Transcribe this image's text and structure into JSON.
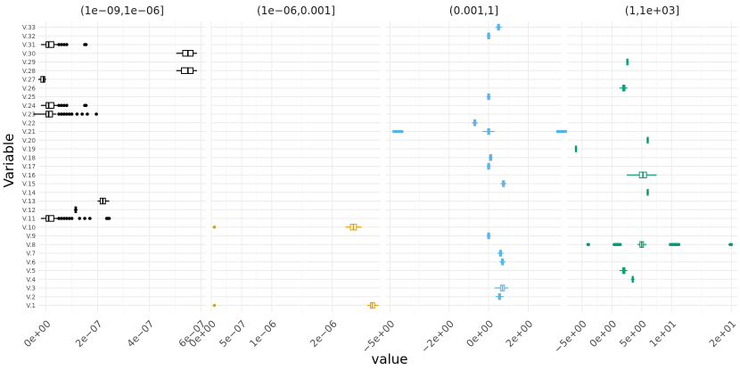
{
  "chart_data": {
    "type": "boxplot",
    "xlabel": "value",
    "ylabel": "Variable",
    "variables": [
      "V.1",
      "V.2",
      "V.3",
      "V.4",
      "V.5",
      "V.6",
      "V.7",
      "V.8",
      "V.9",
      "V.10",
      "V.11",
      "V.12",
      "V.13",
      "V.14",
      "V.15",
      "V.16",
      "V.17",
      "V.18",
      "V.19",
      "V.20",
      "V.21",
      "V.22",
      "V.23",
      "V.24",
      "V.25",
      "V.26",
      "V.27",
      "V.28",
      "V.29",
      "V.30",
      "V.31",
      "V.32",
      "V.33"
    ],
    "panels": [
      {
        "title": "(1e−09,1e−06]",
        "color": "#000000",
        "xlim": [
          -3e-08,
          6.2e-07
        ],
        "ticks": [
          {
            "value": 0,
            "label": "0e+00"
          },
          {
            "value": 2e-07,
            "label": "2e−07"
          },
          {
            "value": 4e-07,
            "label": "4e−07"
          },
          {
            "value": 6e-07,
            "label": "6e−07"
          }
        ],
        "boxes": [
          {
            "variable": "V.11",
            "q1": 0.0,
            "median": 1e-08,
            "q3": 3e-08,
            "whisker_low": -2e-08,
            "whisker_high": 4.5e-08,
            "outliers": [
              5e-08,
              6e-08,
              7e-08,
              8e-08,
              9e-08,
              1e-07,
              1.3e-07,
              1.5e-07,
              1.7e-07,
              2.35e-07,
              2.4e-07,
              2.45e-07
            ]
          },
          {
            "variable": "V.12",
            "q1": 1.12e-07,
            "median": 1.15e-07,
            "q3": 1.18e-07,
            "whisker_low": 1.08e-07,
            "whisker_high": 1.22e-07,
            "outliers": []
          },
          {
            "variable": "V.13",
            "q1": 2.1e-07,
            "median": 2.2e-07,
            "q3": 2.3e-07,
            "whisker_low": 2e-07,
            "whisker_high": 2.45e-07,
            "outliers": []
          },
          {
            "variable": "V.23",
            "q1": 0.0,
            "median": 1e-08,
            "q3": 2.5e-08,
            "whisker_low": -5e-08,
            "whisker_high": 4e-08,
            "outliers": [
              5e-08,
              6e-08,
              7e-08,
              8e-08,
              9e-08,
              1e-07,
              1.2e-07,
              1.4e-07,
              1.6e-07,
              1.95e-07
            ]
          },
          {
            "variable": "V.24",
            "q1": 0.0,
            "median": 1e-08,
            "q3": 3e-08,
            "whisker_low": -2e-08,
            "whisker_high": 4.5e-08,
            "outliers": [
              5e-08,
              6e-08,
              7e-08,
              8e-08,
              1.5e-07,
              1.55e-07
            ]
          },
          {
            "variable": "V.27",
            "q1": -2e-08,
            "median": -1e-08,
            "q3": -5e-09,
            "whisker_low": -3e-08,
            "whisker_high": 0.0,
            "outliers": []
          },
          {
            "variable": "V.28",
            "q1": 5.25e-07,
            "median": 5.5e-07,
            "q3": 5.7e-07,
            "whisker_low": 5.05e-07,
            "whisker_high": 5.85e-07,
            "outliers": []
          },
          {
            "variable": "V.30",
            "q1": 5.3e-07,
            "median": 5.5e-07,
            "q3": 5.7e-07,
            "whisker_low": 5.05e-07,
            "whisker_high": 5.85e-07,
            "outliers": []
          },
          {
            "variable": "V.31",
            "q1": 0.0,
            "median": 1e-08,
            "q3": 3e-08,
            "whisker_low": -2e-08,
            "whisker_high": 4.5e-08,
            "outliers": [
              5e-08,
              6e-08,
              7e-08,
              8e-08,
              1.5e-07,
              1.55e-07
            ]
          }
        ]
      },
      {
        "title": "(1e−06,0.001]",
        "color": "#E69F00",
        "xlim": [
          0,
          2.8e-06
        ],
        "ticks": [
          {
            "value": 0,
            "label": "0e+00"
          },
          {
            "value": 5e-07,
            "label": "5e−07"
          },
          {
            "value": 1e-06,
            "label": "1e−06"
          },
          {
            "value": 2e-06,
            "label": "2e−06"
          }
        ],
        "boxes": [
          {
            "variable": "V.1",
            "q1": 2.63e-06,
            "median": 2.66e-06,
            "q3": 2.7e-06,
            "whisker_low": 2.58e-06,
            "whisker_high": 2.76e-06,
            "outliers": [
              5e-08
            ]
          },
          {
            "variable": "V.10",
            "q1": 2.3e-06,
            "median": 2.35e-06,
            "q3": 2.4e-06,
            "whisker_low": 2.22e-06,
            "whisker_high": 2.48e-06,
            "outliers": [
              5e-08
            ]
          }
        ]
      },
      {
        "title": "(0.001,1]",
        "color": "#56B4E9",
        "xlim": [
          -5.2,
          3.7
        ],
        "ticks": [
          {
            "value": -5,
            "label": "−5e+00"
          },
          {
            "value": -2,
            "label": "−2e+00"
          },
          {
            "value": 0,
            "label": "0e+00"
          },
          {
            "value": 2,
            "label": "2e+00"
          }
        ],
        "boxes": [
          {
            "variable": "V.2",
            "q1": 0.5,
            "median": 0.55,
            "q3": 0.6,
            "whisker_low": 0.35,
            "whisker_high": 0.75,
            "outliers": []
          },
          {
            "variable": "V.3",
            "q1": 0.6,
            "median": 0.7,
            "q3": 0.8,
            "whisker_low": 0.3,
            "whisker_high": 1.0,
            "outliers": []
          },
          {
            "variable": "V.4",
            "q1": 0.0,
            "median": 0.0,
            "q3": 0.0,
            "whisker_low": 0.0,
            "whisker_high": 0.0,
            "outliers": [],
            "hidden": true
          },
          {
            "variable": "V.6",
            "q1": 0.65,
            "median": 0.7,
            "q3": 0.75,
            "whisker_low": 0.55,
            "whisker_high": 0.85,
            "outliers": []
          },
          {
            "variable": "V.7",
            "q1": 0.55,
            "median": 0.6,
            "q3": 0.65,
            "whisker_low": 0.45,
            "whisker_high": 0.75,
            "outliers": []
          },
          {
            "variable": "V.9",
            "q1": -0.05,
            "median": 0.0,
            "q3": 0.05,
            "whisker_low": -0.1,
            "whisker_high": 0.1,
            "outliers": []
          },
          {
            "variable": "V.15",
            "q1": 0.7,
            "median": 0.75,
            "q3": 0.8,
            "whisker_low": 0.6,
            "whisker_high": 0.9,
            "outliers": []
          },
          {
            "variable": "V.17",
            "q1": -0.05,
            "median": 0.0,
            "q3": 0.05,
            "whisker_low": -0.1,
            "whisker_high": 0.1,
            "outliers": []
          },
          {
            "variable": "V.18",
            "q1": 0.05,
            "median": 0.1,
            "q3": 0.15,
            "whisker_low": 0.0,
            "whisker_high": 0.2,
            "outliers": []
          },
          {
            "variable": "V.21",
            "q1": -0.05,
            "median": 0.0,
            "q3": 0.05,
            "whisker_low": -0.3,
            "whisker_high": 0.3,
            "outliers": [
              -4.8,
              -4.7,
              -4.6,
              -4.5,
              -4.4,
              3.5,
              3.6,
              3.7,
              3.8,
              3.9
            ]
          },
          {
            "variable": "V.22",
            "q1": -0.75,
            "median": -0.7,
            "q3": -0.65,
            "whisker_low": -0.85,
            "whisker_high": -0.55,
            "outliers": []
          },
          {
            "variable": "V.25",
            "q1": -0.05,
            "median": 0.0,
            "q3": 0.05,
            "whisker_low": -0.1,
            "whisker_high": 0.1,
            "outliers": []
          },
          {
            "variable": "V.32",
            "q1": -0.05,
            "median": 0.0,
            "q3": 0.05,
            "whisker_low": -0.1,
            "whisker_high": 0.1,
            "outliers": []
          },
          {
            "variable": "V.33",
            "q1": 0.45,
            "median": 0.5,
            "q3": 0.55,
            "whisker_low": 0.35,
            "whisker_high": 0.65,
            "outliers": []
          }
        ]
      },
      {
        "title": "(1,1e+03]",
        "color": "#009E73",
        "xlim": [
          -7.5,
          21.0
        ],
        "ticks": [
          {
            "value": -5,
            "label": "−5e+00"
          },
          {
            "value": 0,
            "label": "0e+00"
          },
          {
            "value": 5,
            "label": "5e+00"
          },
          {
            "value": 10,
            "label": "1e+01"
          },
          {
            "value": 20,
            "label": "2e+01"
          }
        ],
        "boxes": [
          {
            "variable": "V.4",
            "q1": 3.4,
            "median": 3.5,
            "q3": 3.6,
            "whisker_low": 3.2,
            "whisker_high": 3.8,
            "outliers": []
          },
          {
            "variable": "V.5",
            "q1": 1.8,
            "median": 2.0,
            "q3": 2.2,
            "whisker_low": 1.3,
            "whisker_high": 2.6,
            "outliers": []
          },
          {
            "variable": "V.8",
            "q1": 4.7,
            "median": 5.0,
            "q3": 5.3,
            "whisker_low": 4.3,
            "whisker_high": 5.8,
            "outliers": [
              -4.0,
              -3.9,
              0.4,
              0.6,
              0.8,
              1.0,
              1.2,
              1.4,
              9.8,
              10.0,
              10.2,
              10.4,
              10.6,
              10.8,
              11.0,
              11.2,
              19.8,
              20.0
            ]
          },
          {
            "variable": "V.14",
            "q1": 5.9,
            "median": 6.0,
            "q3": 6.1,
            "whisker_low": 5.8,
            "whisker_high": 6.2,
            "outliers": []
          },
          {
            "variable": "V.16",
            "q1": 4.6,
            "median": 5.2,
            "q3": 5.8,
            "whisker_low": 2.5,
            "whisker_high": 7.5,
            "outliers": []
          },
          {
            "variable": "V.19",
            "q1": -6.1,
            "median": -6.0,
            "q3": -5.9,
            "whisker_low": -6.2,
            "whisker_high": -5.8,
            "outliers": []
          },
          {
            "variable": "V.20",
            "q1": 5.9,
            "median": 6.0,
            "q3": 6.1,
            "whisker_low": 5.8,
            "whisker_high": 6.2,
            "outliers": []
          },
          {
            "variable": "V.26",
            "q1": 1.8,
            "median": 2.0,
            "q3": 2.2,
            "whisker_low": 1.3,
            "whisker_high": 2.6,
            "outliers": []
          },
          {
            "variable": "V.29",
            "q1": 2.5,
            "median": 2.6,
            "q3": 2.7,
            "whisker_low": 2.4,
            "whisker_high": 2.8,
            "outliers": []
          }
        ]
      }
    ]
  }
}
